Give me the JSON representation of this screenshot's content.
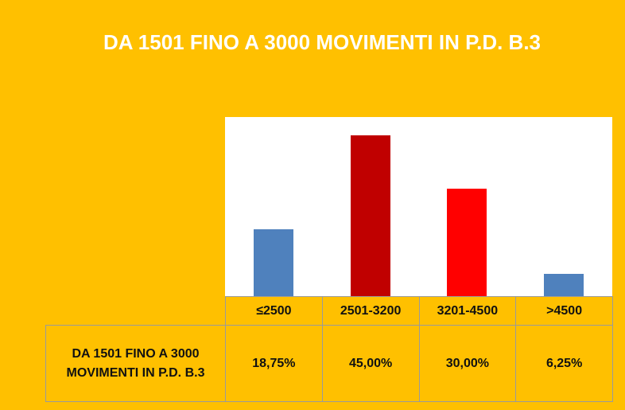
{
  "chart_data": {
    "type": "bar",
    "title": "DA 1501 FINO A 3000 MOVIMENTI IN P.D. B.3",
    "categories": [
      "≤2500",
      "2501-3200",
      "3201-4500",
      ">4500"
    ],
    "series": [
      {
        "name": "DA 1501 FINO A 3000 MOVIMENTI IN P.D. B.3",
        "colors": [
          "#4f81bd",
          "#c00000",
          "#ff0000",
          "#4f81bd"
        ],
        "values": [
          18.75,
          45,
          30,
          6.25
        ],
        "value_labels": [
          "18,75%",
          "45,00%",
          "30,00%",
          "6,25%"
        ]
      }
    ],
    "ylim": [
      0,
      50
    ]
  }
}
